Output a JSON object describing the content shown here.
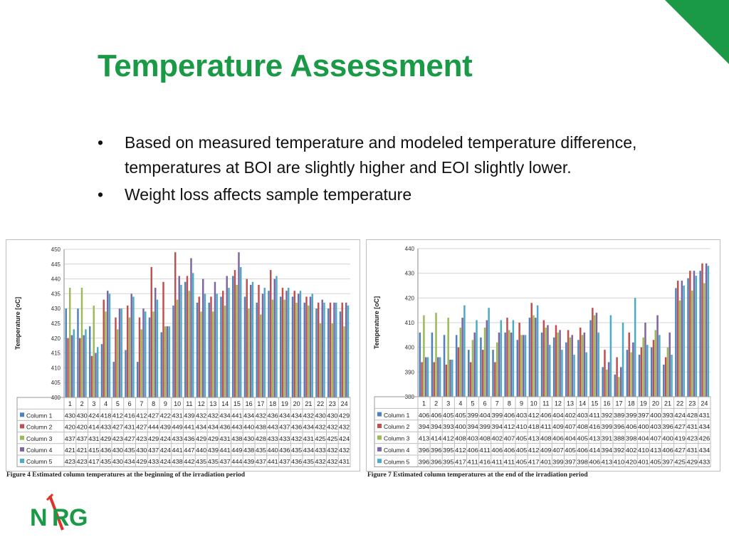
{
  "slide": {
    "title": "Temperature Assessment",
    "bullet_marker": "•",
    "bullets": [
      "Based on measured temperature and modeled temperature difference, temperatures at BOI are slightly higher and EOI slightly lower.",
      "Weight loss affects sample temperature"
    ],
    "logo": {
      "letters": [
        "N",
        "R",
        "G"
      ],
      "colors": {
        "green": "#1a9a46",
        "red": "#e0312b"
      }
    },
    "accent_color": "#1a9a46"
  },
  "chart_data": [
    {
      "type": "bar",
      "ylabel": "Temperature [oC]",
      "ylim": [
        400,
        450
      ],
      "yticks": [
        400,
        405,
        410,
        415,
        420,
        425,
        430,
        435,
        440,
        445,
        450
      ],
      "grid": true,
      "legend": "table below chart",
      "caption": "Figure 4   Estimated column temperatures at the beginning of the irradiation period",
      "categories": [
        "1",
        "2",
        "3",
        "4",
        "5",
        "6",
        "7",
        "8",
        "9",
        "10",
        "11",
        "12",
        "13",
        "14",
        "15",
        "16",
        "17",
        "18",
        "19",
        "20",
        "21",
        "22",
        "23",
        "24"
      ],
      "series": [
        {
          "name": "Column 1",
          "color": "#4f81bd",
          "values": [
            430,
            430,
            424,
            418,
            412,
            416,
            412,
            427,
            422,
            431,
            439,
            432,
            432,
            434,
            441,
            434,
            432,
            436,
            434,
            434,
            432,
            430,
            430,
            429
          ]
        },
        {
          "name": "Column 2",
          "color": "#c0504d",
          "values": [
            420,
            420,
            414,
            433,
            427,
            431,
            427,
            444,
            439,
            449,
            441,
            434,
            434,
            436,
            443,
            440,
            438,
            443,
            437,
            436,
            434,
            432,
            432,
            432
          ]
        },
        {
          "name": "Column 3",
          "color": "#9bbb59",
          "values": [
            437,
            437,
            431,
            429,
            423,
            427,
            423,
            429,
            424,
            433,
            436,
            429,
            429,
            431,
            438,
            430,
            428,
            433,
            433,
            432,
            431,
            425,
            425,
            424
          ]
        },
        {
          "name": "Column 4",
          "color": "#8064a2",
          "values": [
            421,
            421,
            415,
            436,
            430,
            435,
            430,
            437,
            424,
            441,
            447,
            440,
            439,
            441,
            449,
            438,
            435,
            440,
            436,
            435,
            434,
            433,
            432,
            432
          ]
        },
        {
          "name": "Column 5",
          "color": "#4bacc6",
          "values": [
            423,
            423,
            417,
            435,
            430,
            434,
            429,
            433,
            424,
            438,
            442,
            435,
            435,
            437,
            444,
            439,
            437,
            441,
            437,
            436,
            435,
            432,
            432,
            431
          ]
        }
      ]
    },
    {
      "type": "bar",
      "ylabel": "Temperature [oC]",
      "ylim": [
        380,
        440
      ],
      "yticks": [
        380,
        390,
        400,
        410,
        420,
        430,
        440
      ],
      "grid": true,
      "legend": "table below chart",
      "caption": "Figure 7   Estimated column temperatures at the end of the irradiation period",
      "categories": [
        "1",
        "2",
        "3",
        "4",
        "5",
        "6",
        "7",
        "8",
        "9",
        "10",
        "11",
        "12",
        "13",
        "14",
        "15",
        "16",
        "17",
        "18",
        "19",
        "20",
        "21",
        "22",
        "23",
        "24"
      ],
      "series": [
        {
          "name": "Column 1",
          "color": "#4f81bd",
          "values": [
            406,
            406,
            405,
            405,
            399,
            404,
            399,
            406,
            403,
            412,
            406,
            404,
            402,
            403,
            411,
            392,
            389,
            399,
            397,
            400,
            393,
            424,
            428,
            431
          ]
        },
        {
          "name": "Column 2",
          "color": "#c0504d",
          "values": [
            394,
            394,
            393,
            400,
            394,
            399,
            394,
            412,
            410,
            418,
            411,
            409,
            407,
            408,
            416,
            399,
            396,
            406,
            400,
            403,
            396,
            427,
            431,
            434
          ]
        },
        {
          "name": "Column 3",
          "color": "#9bbb59",
          "values": [
            413,
            414,
            412,
            408,
            403,
            408,
            402,
            407,
            405,
            413,
            408,
            406,
            404,
            405,
            413,
            391,
            388,
            398,
            404,
            407,
            400,
            419,
            423,
            426
          ]
        },
        {
          "name": "Column 4",
          "color": "#8064a2",
          "values": [
            396,
            396,
            395,
            412,
            406,
            411,
            406,
            406,
            405,
            412,
            409,
            407,
            405,
            406,
            414,
            394,
            392,
            402,
            410,
            413,
            406,
            427,
            431,
            434
          ]
        },
        {
          "name": "Column 5",
          "color": "#4bacc6",
          "values": [
            396,
            396,
            395,
            417,
            411,
            416,
            411,
            411,
            405,
            417,
            401,
            399,
            397,
            398,
            406,
            413,
            410,
            420,
            401,
            405,
            397,
            425,
            429,
            433
          ]
        }
      ]
    }
  ]
}
